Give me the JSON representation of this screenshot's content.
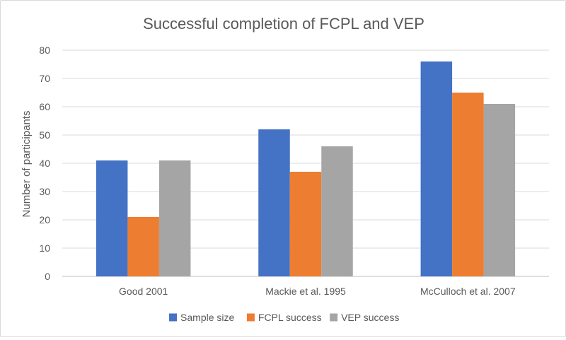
{
  "chart_data": {
    "type": "bar",
    "title": "Successful completion of FCPL and VEP",
    "xlabel": "",
    "ylabel": "Number of participants",
    "categories": [
      "Good 2001",
      "Mackie et al. 1995",
      "McCulloch et al. 2007"
    ],
    "series": [
      {
        "name": "Sample size",
        "color": "#4472c4",
        "values": [
          41,
          52,
          76
        ]
      },
      {
        "name": "FCPL success",
        "color": "#ed7d31",
        "values": [
          21,
          37,
          65
        ]
      },
      {
        "name": "VEP success",
        "color": "#a5a5a5",
        "values": [
          41,
          46,
          61
        ]
      }
    ],
    "ylim": [
      0,
      80
    ],
    "yticks": [
      0,
      10,
      20,
      30,
      40,
      50,
      60,
      70,
      80
    ],
    "grid": true,
    "legend_position": "bottom"
  }
}
